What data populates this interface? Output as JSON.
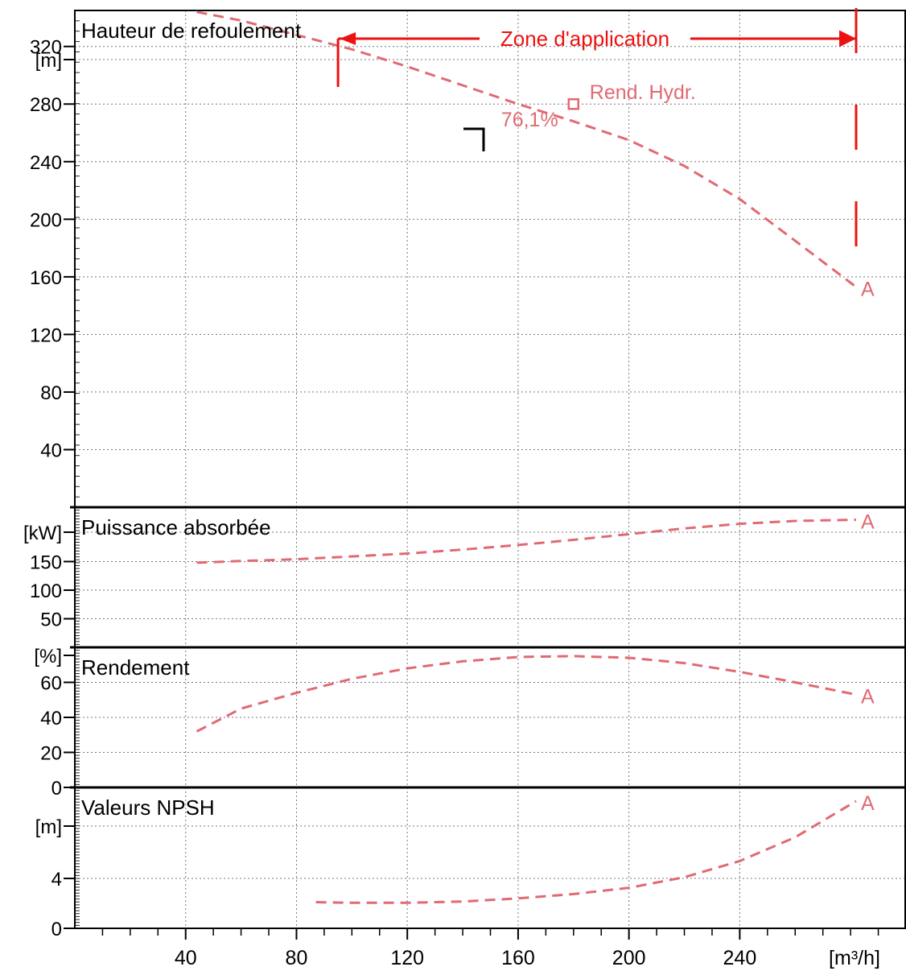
{
  "x_axis": {
    "unit": "[m³/h]",
    "ticks": [
      "40",
      "80",
      "120",
      "160",
      "200",
      "240"
    ],
    "range": [
      0,
      300
    ]
  },
  "application_zone": {
    "label": "Zone d'application",
    "q_min": 95,
    "q_max": 282,
    "color": "#ee1111"
  },
  "curve_color": "#e06a72",
  "chart_data": [
    {
      "type": "line",
      "title": "Hauteur de refoulement",
      "ylabel": "[m]",
      "ylim": [
        0,
        345
      ],
      "yticks": [
        "40",
        "80",
        "120",
        "160",
        "200",
        "240",
        "280",
        "320"
      ],
      "grid": true,
      "series": [
        {
          "x": [
            44,
            60,
            80,
            100,
            120,
            140,
            160,
            180,
            200,
            220,
            240,
            260,
            282
          ],
          "y": [
            344,
            338,
            328,
            318,
            306,
            293,
            280,
            268,
            255,
            237,
            214,
            185,
            153
          ]
        }
      ],
      "end_label": "A",
      "annotations": {
        "point_label": "Rend. Hydr.",
        "point_value": "76,1%",
        "point_x": 180,
        "point_y": 280
      }
    },
    {
      "type": "line",
      "title": "Puissance absorbée",
      "ylabel": "[kW]",
      "ylim": [
        0,
        245
      ],
      "yticks": [
        "50",
        "100",
        "150"
      ],
      "grid": true,
      "series": [
        {
          "x": [
            44,
            60,
            80,
            100,
            120,
            140,
            160,
            180,
            200,
            220,
            240,
            260,
            282
          ],
          "y": [
            148,
            151,
            154,
            159,
            164,
            171,
            179,
            188,
            198,
            208,
            216,
            221,
            223
          ]
        }
      ],
      "end_label": "A"
    },
    {
      "type": "line",
      "title": "Rendement",
      "ylabel": "[%]",
      "ylim": [
        0,
        80
      ],
      "yticks": [
        "0",
        "20",
        "40",
        "60"
      ],
      "grid": true,
      "series": [
        {
          "x": [
            44,
            60,
            80,
            100,
            120,
            140,
            160,
            180,
            200,
            220,
            240,
            260,
            282
          ],
          "y": [
            32,
            45,
            54,
            62,
            68,
            72,
            74.5,
            75,
            74,
            71,
            66,
            60,
            53
          ]
        }
      ],
      "end_label": "A"
    },
    {
      "type": "line",
      "title": "Valeurs NPSH",
      "ylabel": "[m]",
      "ylim": [
        0,
        11.3
      ],
      "yticks": [
        "0",
        "4"
      ],
      "grid": true,
      "series": [
        {
          "x": [
            87,
            100,
            120,
            140,
            160,
            180,
            200,
            220,
            240,
            260,
            282
          ],
          "y": [
            2.1,
            2.05,
            2.05,
            2.15,
            2.4,
            2.75,
            3.25,
            4.1,
            5.4,
            7.3,
            10.2
          ]
        }
      ],
      "end_label": "A"
    }
  ]
}
